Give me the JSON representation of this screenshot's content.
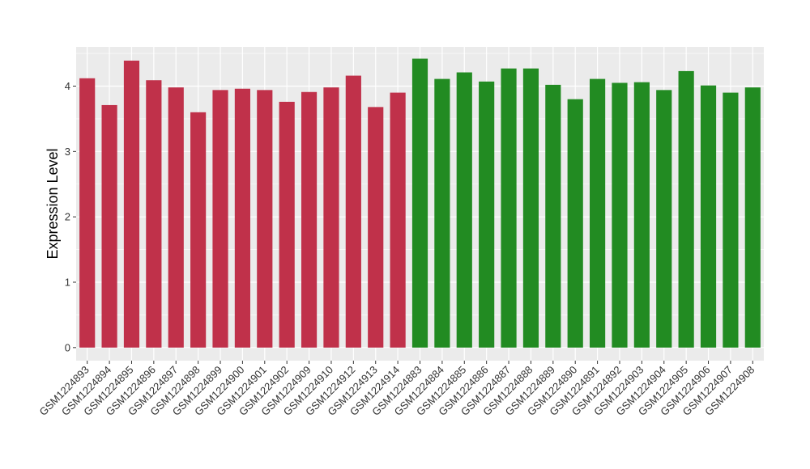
{
  "chart_data": {
    "type": "bar",
    "title": "",
    "xlabel": "",
    "ylabel": "Expression Level",
    "ylim": [
      -0.2,
      4.6
    ],
    "yticks": [
      0,
      1,
      2,
      3,
      4
    ],
    "grid": true,
    "categories": [
      "GSM1224893",
      "GSM1224894",
      "GSM1224895",
      "GSM1224896",
      "GSM1224897",
      "GSM1224898",
      "GSM1224899",
      "GSM1224900",
      "GSM1224901",
      "GSM1224902",
      "GSM1224909",
      "GSM1224910",
      "GSM1224912",
      "GSM1224913",
      "GSM1224914",
      "GSM1224883",
      "GSM1224884",
      "GSM1224885",
      "GSM1224886",
      "GSM1224887",
      "GSM1224888",
      "GSM1224889",
      "GSM1224890",
      "GSM1224891",
      "GSM1224892",
      "GSM1224903",
      "GSM1224904",
      "GSM1224905",
      "GSM1224906",
      "GSM1224907",
      "GSM1224908"
    ],
    "values": [
      4.12,
      3.71,
      4.39,
      4.09,
      3.98,
      3.6,
      3.94,
      3.96,
      3.94,
      3.76,
      3.91,
      3.98,
      4.16,
      3.68,
      3.9,
      4.42,
      4.11,
      4.21,
      4.07,
      4.27,
      4.27,
      4.02,
      3.8,
      4.11,
      4.05,
      4.06,
      3.94,
      4.23,
      4.01,
      3.9,
      3.98
    ],
    "bar_colors": [
      "#c0314a",
      "#c0314a",
      "#c0314a",
      "#c0314a",
      "#c0314a",
      "#c0314a",
      "#c0314a",
      "#c0314a",
      "#c0314a",
      "#c0314a",
      "#c0314a",
      "#c0314a",
      "#c0314a",
      "#c0314a",
      "#c0314a",
      "#228b22",
      "#228b22",
      "#228b22",
      "#228b22",
      "#228b22",
      "#228b22",
      "#228b22",
      "#228b22",
      "#228b22",
      "#228b22",
      "#228b22",
      "#228b22",
      "#228b22",
      "#228b22",
      "#228b22",
      "#228b22"
    ],
    "panel_background": "#ebebeb",
    "grid_color": "#ffffff"
  }
}
